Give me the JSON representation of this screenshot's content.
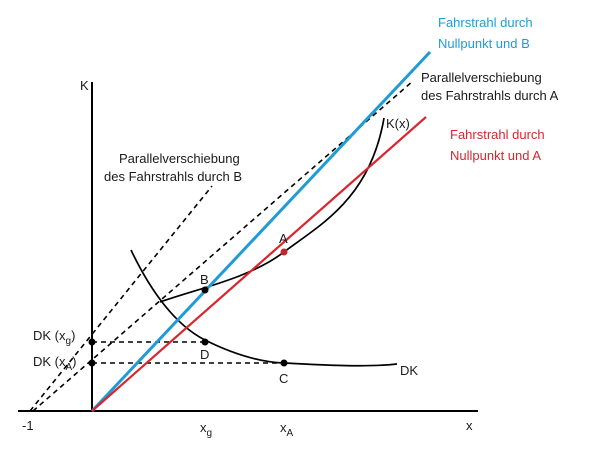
{
  "labels": {
    "axis_y": "K",
    "axis_x": "x",
    "tick_minus_one": "-1",
    "tick_xg": "x",
    "tick_xg_sub": "g",
    "tick_xa": "x",
    "tick_xa_sub": "A",
    "dk_xg": "DK (x",
    "dk_xg_sub": "g",
    "dk_xa": "DK (x",
    "dk_xa_sub": "A",
    "close_paren": ")",
    "point_a": "A",
    "point_b": "B",
    "point_c": "C",
    "point_d": "D",
    "curve_k": "K(x)",
    "curve_dk": "DK",
    "ray_b_line1": "Fahrstrahl durch",
    "ray_b_line2": "Nullpunkt und B",
    "ray_a_line1": "Fahrstrahl durch",
    "ray_a_line2": "Nullpunkt und A",
    "shift_a_line1": "Parallelverschiebung",
    "shift_a_line2": "des Fahrstrahls durch A",
    "shift_b_line1": "Parallelverschiebung",
    "shift_b_line2": "des Fahrstrahls durch B"
  },
  "colors": {
    "ray_b": "#1f9bd6",
    "ray_a": "#d8262e",
    "axes": "#000000"
  }
}
